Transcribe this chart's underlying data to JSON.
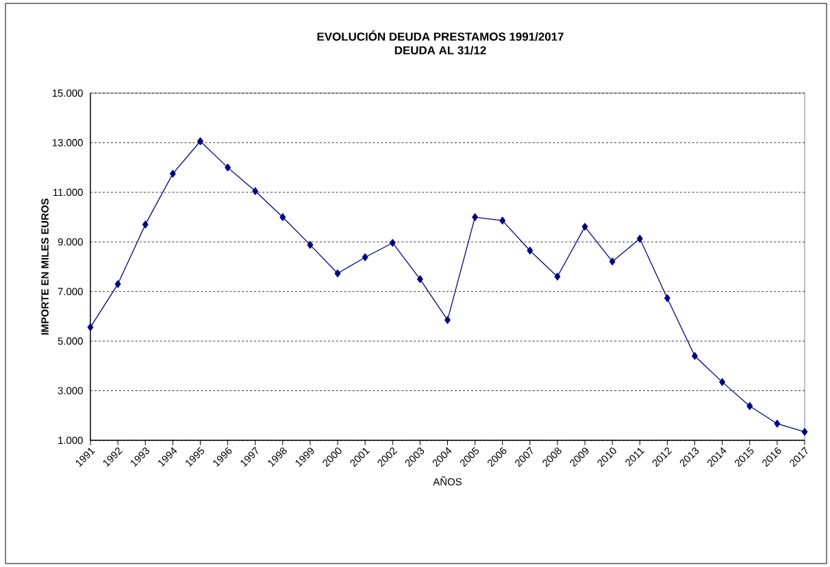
{
  "chart_data": {
    "type": "line",
    "title": "EVOLUCIÓN DEUDA PRESTAMOS 1991/2017",
    "subtitle": "DEUDA AL  31/12",
    "xlabel": "AÑOS",
    "ylabel": "IMPORTE  EN MILES  EUROS",
    "categories": [
      "1991",
      "1992",
      "1993",
      "1994",
      "1995",
      "1996",
      "1997",
      "1998",
      "1999",
      "2000",
      "2001",
      "2002",
      "2003",
      "2004",
      "2005",
      "2006",
      "2007",
      "2008",
      "2009",
      "2010",
      "2011",
      "2012",
      "2013",
      "2014",
      "2015",
      "2016",
      "2017"
    ],
    "series": [
      {
        "color": "#000080",
        "values": [
          5560,
          7300,
          9700,
          11750,
          13060,
          12000,
          11050,
          10000,
          8880,
          7730,
          8380,
          8960,
          7500,
          5850,
          10000,
          9860,
          8650,
          7600,
          9610,
          8210,
          9130,
          6730,
          4400,
          3350,
          2380,
          1670,
          1340
        ]
      }
    ],
    "ylim": [
      1000,
      15000
    ],
    "yticks": [
      {
        "value": 1000,
        "label": "1.000"
      },
      {
        "value": 3000,
        "label": "3.000"
      },
      {
        "value": 5000,
        "label": "5.000"
      },
      {
        "value": 7000,
        "label": "7.000"
      },
      {
        "value": 9000,
        "label": "9.000"
      },
      {
        "value": 11000,
        "label": "11.000"
      },
      {
        "value": 13000,
        "label": "13.000"
      },
      {
        "value": 15000,
        "label": "15.000"
      }
    ],
    "grid": "y",
    "marker": "diamond",
    "line_style": "solid"
  }
}
